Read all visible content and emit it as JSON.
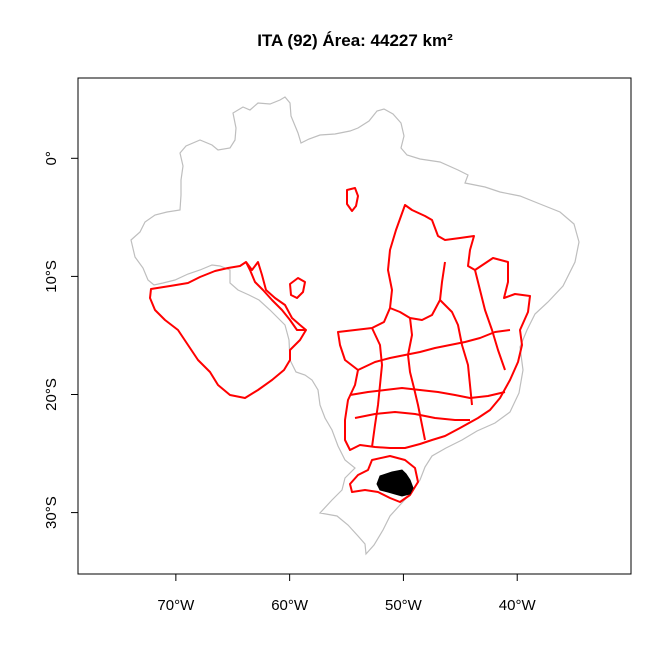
{
  "title": "ITA (92) Área: 44227 km²",
  "map": {
    "x_ticks": [
      {
        "lon": -70,
        "label": "70°W"
      },
      {
        "lon": -60,
        "label": "60°W"
      },
      {
        "lon": -50,
        "label": "50°W"
      },
      {
        "lon": -40,
        "label": "40°W"
      }
    ],
    "y_ticks": [
      {
        "lat": 0,
        "label": "0°"
      },
      {
        "lat": -10,
        "label": "10°S"
      },
      {
        "lat": -20,
        "label": "20°S"
      },
      {
        "lat": -30,
        "label": "30°S"
      }
    ],
    "lon_range": [
      -78.6,
      -30.0
    ],
    "lat_range": [
      -35.2,
      6.8
    ],
    "colors": {
      "country_outline": "#bebebe",
      "basin_outline": "#ff0000",
      "highlight_fill": "#000000"
    }
  }
}
